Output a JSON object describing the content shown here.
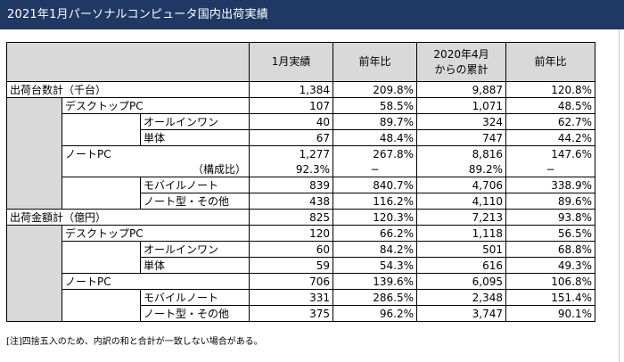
{
  "title": "2021年1月パーソナルコンピュータ国内出荷実績",
  "header": {
    "col1": "1月実績",
    "col2": "前年比",
    "col3_line1": "2020年4月",
    "col3_line2": "からの累計",
    "col4": "前年比"
  },
  "rows": [
    {
      "label": "出荷台数計（千台）",
      "v1": "1,384",
      "v2": "209.8%",
      "v3": "9,887",
      "v4": "120.8%"
    },
    {
      "label": "デスクトップPC",
      "v1": "107",
      "v2": "58.5%",
      "v3": "1,071",
      "v4": "48.5%"
    },
    {
      "label": "オールインワン",
      "v1": "40",
      "v2": "89.7%",
      "v3": "324",
      "v4": "62.7%"
    },
    {
      "label": "単体",
      "v1": "67",
      "v2": "48.4%",
      "v3": "747",
      "v4": "44.2%"
    },
    {
      "label": "ノートPC",
      "v1": "1,277",
      "v2": "267.8%",
      "v3": "8,816",
      "v4": "147.6%"
    },
    {
      "label": "（構成比）",
      "v1": "92.3%",
      "v2": "−",
      "v3": "89.2%",
      "v4": "−"
    },
    {
      "label": "モバイルノート",
      "v1": "839",
      "v2": "840.7%",
      "v3": "4,706",
      "v4": "338.9%"
    },
    {
      "label": "ノート型・その他",
      "v1": "438",
      "v2": "116.2%",
      "v3": "4,110",
      "v4": "89.6%"
    },
    {
      "label": "出荷金額計（億円）",
      "v1": "825",
      "v2": "120.3%",
      "v3": "7,213",
      "v4": "93.8%"
    },
    {
      "label": "デスクトップPC",
      "v1": "120",
      "v2": "66.2%",
      "v3": "1,118",
      "v4": "56.5%"
    },
    {
      "label": "オールインワン",
      "v1": "60",
      "v2": "84.2%",
      "v3": "501",
      "v4": "68.8%"
    },
    {
      "label": "単体",
      "v1": "59",
      "v2": "54.3%",
      "v3": "616",
      "v4": "49.3%"
    },
    {
      "label": "ノートPC",
      "v1": "706",
      "v2": "139.6%",
      "v3": "6,095",
      "v4": "106.8%"
    },
    {
      "label": "モバイルノート",
      "v1": "331",
      "v2": "286.5%",
      "v3": "2,348",
      "v4": "151.4%"
    },
    {
      "label": "ノート型・その他",
      "v1": "375",
      "v2": "96.2%",
      "v3": "3,747",
      "v4": "90.1%"
    }
  ],
  "footnote": "[注]四捨五入のため、内訳の和と合計が一致しない場合がある。"
}
